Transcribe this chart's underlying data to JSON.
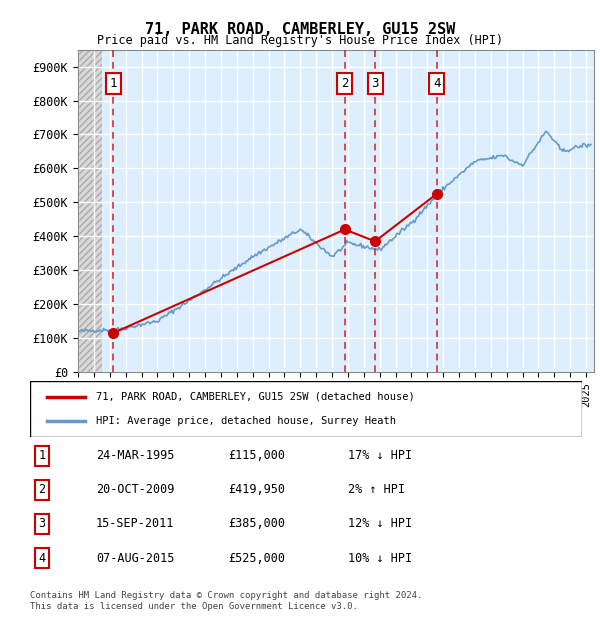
{
  "title": "71, PARK ROAD, CAMBERLEY, GU15 2SW",
  "subtitle": "Price paid vs. HM Land Registry's House Price Index (HPI)",
  "ylabel_ticks": [
    "£0",
    "£100K",
    "£200K",
    "£300K",
    "£400K",
    "£500K",
    "£600K",
    "£700K",
    "£800K",
    "£900K"
  ],
  "ytick_values": [
    0,
    100000,
    200000,
    300000,
    400000,
    500000,
    600000,
    700000,
    800000,
    900000
  ],
  "ylim": [
    0,
    950000
  ],
  "xlim_start": 1993.0,
  "xlim_end": 2025.5,
  "sale_dates": [
    1995.23,
    2009.8,
    2011.71,
    2015.6
  ],
  "sale_prices": [
    115000,
    419950,
    385000,
    525000
  ],
  "sale_labels": [
    "1",
    "2",
    "3",
    "4"
  ],
  "sale_color": "#cc0000",
  "hpi_color": "#6699cc",
  "legend_sale_label": "71, PARK ROAD, CAMBERLEY, GU15 2SW (detached house)",
  "legend_hpi_label": "HPI: Average price, detached house, Surrey Heath",
  "table_rows": [
    [
      "1",
      "24-MAR-1995",
      "£115,000",
      "17% ↓ HPI"
    ],
    [
      "2",
      "20-OCT-2009",
      "£419,950",
      "2% ↑ HPI"
    ],
    [
      "3",
      "15-SEP-2011",
      "£385,000",
      "12% ↓ HPI"
    ],
    [
      "4",
      "07-AUG-2015",
      "£525,000",
      "10% ↓ HPI"
    ]
  ],
  "footer": "Contains HM Land Registry data © Crown copyright and database right 2024.\nThis data is licensed under the Open Government Licence v3.0.",
  "bg_hatch_color": "#cccccc",
  "plot_bg_color": "#ddeeff",
  "grid_color": "#ffffff",
  "hatch_bg_left": "#e8e8e8"
}
